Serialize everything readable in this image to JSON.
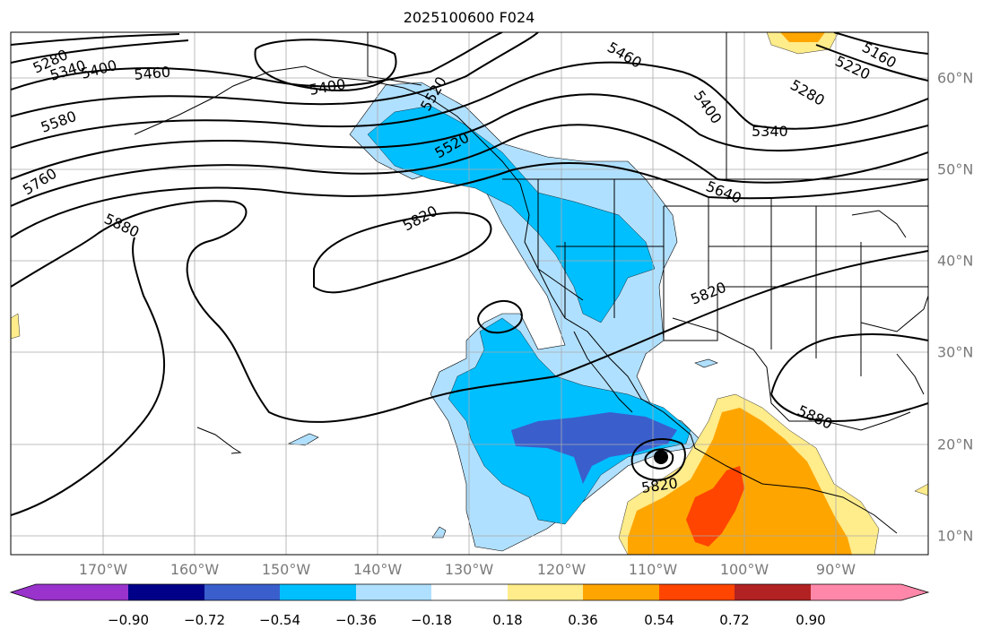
{
  "title": "2025100600 F024",
  "lon_labels": [
    "170°W",
    "160°W",
    "150°W",
    "140°W",
    "130°W",
    "120°W",
    "110°W",
    "100°W",
    "90°W"
  ],
  "lat_labels": [
    "60°N",
    "50°N",
    "40°N",
    "30°N",
    "20°N",
    "10°N"
  ],
  "colorbar": {
    "ticks": [
      "−0.90",
      "−0.72",
      "−0.54",
      "−0.36",
      "−0.18",
      "0.18",
      "0.36",
      "0.54",
      "0.72",
      "0.90"
    ],
    "colors": [
      "#9933cc",
      "#000088",
      "#3a5fcd",
      "#00bfff",
      "#b0e0ff",
      "#ffffff",
      "#ffec8b",
      "#ffa500",
      "#ff4500",
      "#b22222",
      "#ff88aa"
    ]
  },
  "contour_labels": [
    "5280",
    "5340",
    "5400",
    "5460",
    "5580",
    "5760",
    "5880",
    "5400",
    "5520",
    "5460",
    "5400",
    "5340",
    "5220",
    "5160",
    "5280",
    "5640",
    "5820",
    "5820",
    "5820",
    "5880",
    "5520"
  ]
}
